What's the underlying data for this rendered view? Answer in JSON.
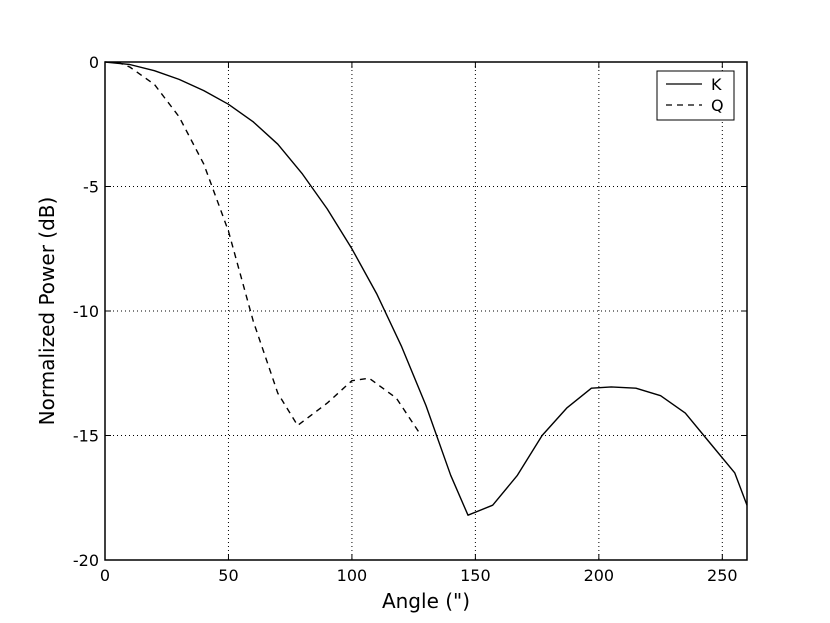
{
  "chart_data": {
    "type": "line",
    "title": "",
    "xlabel": "Angle (\")",
    "ylabel": "Normalized Power (dB)",
    "xlim": [
      0,
      260
    ],
    "ylim": [
      -20,
      0
    ],
    "xticks": [
      0,
      50,
      100,
      150,
      200,
      250
    ],
    "yticks": [
      0,
      -5,
      -10,
      -15,
      -20
    ],
    "grid": true,
    "grid_style": "dotted",
    "legend_position": "top-right",
    "series": [
      {
        "name": "K",
        "style": "solid",
        "color": "#000000",
        "x": [
          0,
          10,
          20,
          30,
          40,
          50,
          60,
          70,
          80,
          90,
          100,
          110,
          120,
          130,
          140,
          147,
          157,
          167,
          177,
          187,
          197,
          205,
          215,
          225,
          235,
          245,
          255,
          260
        ],
        "y": [
          0,
          -0.1,
          -0.35,
          -0.7,
          -1.15,
          -1.7,
          -2.4,
          -3.3,
          -4.5,
          -5.9,
          -7.5,
          -9.3,
          -11.4,
          -13.8,
          -16.6,
          -18.2,
          -17.8,
          -16.6,
          -15.0,
          -13.9,
          -13.1,
          -13.05,
          -13.1,
          -13.4,
          -14.1,
          -15.3,
          -16.5,
          -17.8
        ]
      },
      {
        "name": "Q",
        "style": "dashed",
        "color": "#000000",
        "x": [
          5,
          10,
          20,
          30,
          40,
          50,
          60,
          70,
          78,
          90,
          100,
          107,
          118,
          128
        ],
        "y": [
          0,
          -0.2,
          -0.9,
          -2.2,
          -4.1,
          -6.8,
          -10.4,
          -13.3,
          -14.6,
          -13.7,
          -12.8,
          -12.7,
          -13.5,
          -15.0
        ]
      }
    ]
  }
}
